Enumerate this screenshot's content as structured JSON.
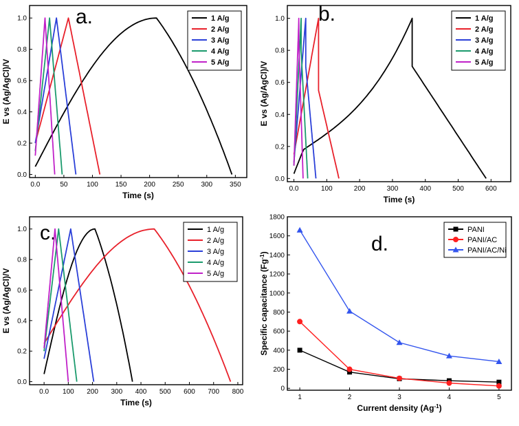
{
  "chart_data": [
    {
      "id": "a",
      "panel_label": "a.",
      "type": "line",
      "xlabel": "Time (s)",
      "ylabel": "E vs (Ag/AgCl)/V",
      "xlim": [
        -10,
        370
      ],
      "ylim": [
        -0.02,
        1.08
      ],
      "xticks": [
        0,
        50,
        100,
        150,
        200,
        250,
        300,
        350
      ],
      "yticks": [
        0.0,
        0.2,
        0.4,
        0.6,
        0.8,
        1.0
      ],
      "legend": {
        "position": "top-right",
        "bold": true
      },
      "series": [
        {
          "name": "1 A/g",
          "color": "#000000",
          "t0": 0,
          "tp": 212,
          "te": 344,
          "v0": 0.05,
          "shape": "concave",
          "drop": 0
        },
        {
          "name": "2 A/g",
          "color": "#e8202a",
          "t0": 0,
          "tp": 58,
          "te": 113,
          "v0": 0.2,
          "shape": "linear",
          "drop": 0
        },
        {
          "name": "3 A/g",
          "color": "#2a3fd8",
          "t0": 0,
          "tp": 37,
          "te": 71,
          "v0": 0.2,
          "shape": "linear",
          "drop": 0
        },
        {
          "name": "4 A/g",
          "color": "#1a9a6c",
          "t0": 0,
          "tp": 25,
          "te": 47,
          "v0": 0.15,
          "shape": "linear",
          "drop": 0
        },
        {
          "name": "5 A/g",
          "color": "#c020c8",
          "t0": 0,
          "tp": 17,
          "te": 34,
          "v0": 0.12,
          "shape": "linear",
          "drop": 0
        }
      ]
    },
    {
      "id": "b",
      "panel_label": "b.",
      "type": "line",
      "xlabel": "Time (s)",
      "ylabel": "E vs (Ag/AgCl)/V",
      "xlim": [
        -20,
        660
      ],
      "ylim": [
        -0.02,
        1.08
      ],
      "xticks": [
        0,
        100,
        200,
        300,
        400,
        500,
        600
      ],
      "yticks": [
        0.0,
        0.2,
        0.4,
        0.6,
        0.8,
        1.0
      ],
      "legend": {
        "position": "top-right",
        "bold": true
      },
      "series": [
        {
          "name": "1 A/g",
          "color": "#000000",
          "t0": 0,
          "tp": 360,
          "te": 585,
          "v0": 0.03,
          "shape": "mixed",
          "drop": 0.3
        },
        {
          "name": "2 A/g",
          "color": "#e8202a",
          "t0": 0,
          "tp": 75,
          "te": 137,
          "v0": 0.15,
          "shape": "linear",
          "drop": 0.45
        },
        {
          "name": "3 A/g",
          "color": "#2a3fd8",
          "t0": 0,
          "tp": 36,
          "te": 67,
          "v0": 0.1,
          "shape": "linear",
          "drop": 0.3
        },
        {
          "name": "4 A/g",
          "color": "#1a9a6c",
          "t0": 0,
          "tp": 22,
          "te": 42,
          "v0": 0.08,
          "shape": "linear",
          "drop": 0.2
        },
        {
          "name": "5 A/g",
          "color": "#c020c8",
          "t0": 0,
          "tp": 15,
          "te": 28,
          "v0": 0.08,
          "shape": "linear",
          "drop": 0.15
        }
      ]
    },
    {
      "id": "c",
      "panel_label": "c.",
      "type": "line",
      "xlabel": "Time (s)",
      "ylabel": "E vs (Ag/AgCl)/V",
      "xlim": [
        -60,
        820
      ],
      "ylim": [
        -0.02,
        1.08
      ],
      "xticks": [
        0,
        100,
        200,
        300,
        400,
        500,
        600,
        700,
        800
      ],
      "yticks": [
        0.0,
        0.2,
        0.4,
        0.6,
        0.8,
        1.0
      ],
      "legend": {
        "position": "top-right",
        "bold": false
      },
      "series": [
        {
          "name": "1 A/g",
          "color": "#000000",
          "t0": 0,
          "tp": 210,
          "te": 365,
          "v0": 0.05,
          "shape": "concave",
          "drop": 0
        },
        {
          "name": "2 A/g",
          "color": "#e8202a",
          "t0": 0,
          "tp": 455,
          "te": 770,
          "v0": 0.25,
          "shape": "concave",
          "drop": 0
        },
        {
          "name": "3 A/g",
          "color": "#2a3fd8",
          "t0": 0,
          "tp": 110,
          "te": 205,
          "v0": 0.15,
          "shape": "linear",
          "drop": 0
        },
        {
          "name": "4 A/g",
          "color": "#1a9a6c",
          "t0": 0,
          "tp": 60,
          "te": 135,
          "v0": 0.2,
          "shape": "linear",
          "drop": 0
        },
        {
          "name": "5 A/g",
          "color": "#c020c8",
          "t0": 0,
          "tp": 45,
          "te": 100,
          "v0": 0.22,
          "shape": "linear",
          "drop": 0
        }
      ]
    },
    {
      "id": "d",
      "panel_label": "d.",
      "type": "line",
      "xlabel": "Current density (Ag",
      "xlabel_sup": "-1",
      "xlabel_end": ")",
      "ylabel": "Specific capacitance (Fg",
      "ylabel_sup": "-1",
      "ylabel_end": ")",
      "xlim": [
        0.75,
        5.25
      ],
      "ylim": [
        -20,
        1800
      ],
      "xticks": [
        1,
        2,
        3,
        4,
        5
      ],
      "yticks": [
        0,
        200,
        400,
        600,
        800,
        1000,
        1200,
        1400,
        1600,
        1800
      ],
      "legend": {
        "position": "top-right",
        "bold": false
      },
      "x": [
        1,
        2,
        3,
        4,
        5
      ],
      "series": [
        {
          "name": "PANI",
          "color": "#000000",
          "marker": "square",
          "values": [
            400,
            170,
            100,
            80,
            65
          ]
        },
        {
          "name": "PANI/AC",
          "color": "#ff2020",
          "marker": "circle",
          "values": [
            700,
            200,
            105,
            55,
            25
          ]
        },
        {
          "name": "PANI/AC/Ni",
          "color": "#3355ee",
          "marker": "triangle",
          "values": [
            1660,
            810,
            480,
            340,
            280
          ]
        }
      ]
    }
  ]
}
